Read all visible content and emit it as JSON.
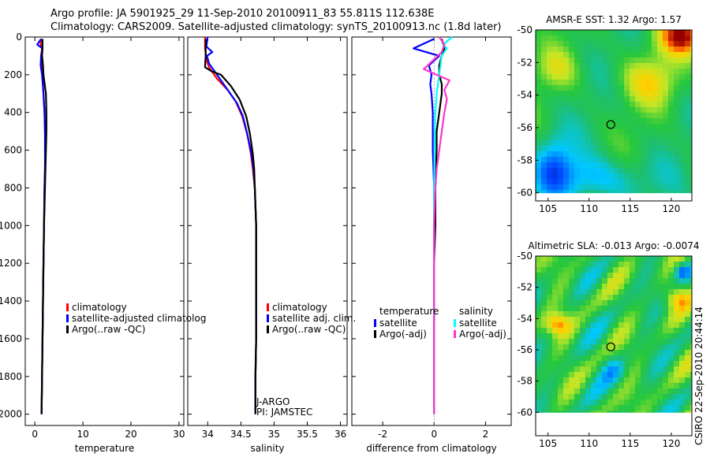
{
  "header": {
    "line1": "Argo profile: JA 5901925_29 11-Sep-2010 20100911_83 55.811S 112.638E",
    "line2": "Climatology: CARS2009. Satellite-adjusted climatology: synTS_20100913.nc (1.8d later)"
  },
  "side_stamp": "CSIRO 22-Sep-2010 20:44:14",
  "colors": {
    "climatology": "#ff0000",
    "satellite": "#0000ff",
    "argo": "#000000",
    "argo_salinity_diff": "#ff33cc",
    "satellite_salinity_diff": "#00ffff"
  },
  "chart_data": [
    {
      "type": "line",
      "xlabel": "temperature",
      "ylabel": "",
      "xlim": [
        -2,
        31
      ],
      "ylim": [
        2060,
        0
      ],
      "x_ticks": [
        0,
        10,
        20,
        30
      ],
      "y_ticks": [
        0,
        200,
        400,
        600,
        800,
        1000,
        1200,
        1400,
        1600,
        1800,
        2000
      ],
      "legend": {
        "placement": "lower-right",
        "entries": [
          "climatology",
          "satellite-adjusted climatolog",
          "Argo(..raw -QC)"
        ]
      },
      "series": [
        {
          "name": "climatology",
          "color": "#ff0000",
          "points": [
            [
              1.3,
              10
            ],
            [
              1.2,
              40
            ],
            [
              1.5,
              60
            ],
            [
              1.3,
              100
            ],
            [
              1.4,
              150
            ],
            [
              1.6,
              200
            ],
            [
              1.8,
              300
            ],
            [
              2.0,
              400
            ],
            [
              2.1,
              500
            ],
            [
              2.2,
              600
            ],
            [
              2.1,
              700
            ],
            [
              2.0,
              800
            ],
            [
              1.9,
              1000
            ],
            [
              1.8,
              1200
            ],
            [
              1.7,
              1400
            ],
            [
              1.6,
              1600
            ],
            [
              1.5,
              1800
            ],
            [
              1.4,
              2000
            ]
          ]
        },
        {
          "name": "satellite-adjusted climatolog",
          "color": "#0000ff",
          "points": [
            [
              1.3,
              10
            ],
            [
              0.5,
              40
            ],
            [
              1.6,
              60
            ],
            [
              1.3,
              100
            ],
            [
              1.2,
              150
            ],
            [
              1.5,
              200
            ],
            [
              1.8,
              300
            ],
            [
              2.0,
              400
            ],
            [
              2.1,
              500
            ],
            [
              2.1,
              600
            ],
            [
              2.1,
              700
            ],
            [
              2.0,
              800
            ],
            [
              1.9,
              1000
            ],
            [
              1.8,
              1200
            ],
            [
              1.7,
              1400
            ],
            [
              1.6,
              1600
            ],
            [
              1.5,
              1800
            ],
            [
              1.4,
              2000
            ]
          ]
        },
        {
          "name": "Argo(..raw -QC)",
          "color": "#000000",
          "points": [
            [
              1.6,
              10
            ],
            [
              1.6,
              60
            ],
            [
              1.5,
              100
            ],
            [
              1.7,
              150
            ],
            [
              1.8,
              200
            ],
            [
              2.3,
              300
            ],
            [
              2.4,
              400
            ],
            [
              2.4,
              500
            ],
            [
              2.3,
              600
            ],
            [
              2.2,
              700
            ],
            [
              2.1,
              800
            ],
            [
              1.9,
              1000
            ],
            [
              1.8,
              1200
            ],
            [
              1.7,
              1400
            ],
            [
              1.6,
              1600
            ],
            [
              1.5,
              1800
            ],
            [
              1.4,
              2000
            ]
          ]
        }
      ]
    },
    {
      "type": "line",
      "xlabel": "salinity",
      "ylabel": "",
      "xlim": [
        33.7,
        36.1
      ],
      "ylim": [
        2060,
        0
      ],
      "x_ticks": [
        34,
        34.5,
        35,
        35.5,
        36
      ],
      "legend": {
        "placement": "lower-right",
        "entries": [
          "climatology",
          "satellite adj. clim.",
          "Argo(..raw -QC)"
        ]
      },
      "annotations": [
        "J-ARGO",
        "PI: JAMSTEC"
      ],
      "series": [
        {
          "name": "climatology",
          "color": "#ff0000",
          "points": [
            [
              33.96,
              0
            ],
            [
              33.96,
              60
            ],
            [
              33.98,
              120
            ],
            [
              34.02,
              160
            ],
            [
              34.14,
              220
            ],
            [
              34.3,
              280
            ],
            [
              34.42,
              340
            ],
            [
              34.52,
              420
            ],
            [
              34.6,
              520
            ],
            [
              34.65,
              620
            ],
            [
              34.68,
              700
            ],
            [
              34.71,
              800
            ],
            [
              34.73,
              1000
            ],
            [
              34.73,
              1200
            ],
            [
              34.73,
              1400
            ],
            [
              34.73,
              1600
            ],
            [
              34.72,
              1800
            ],
            [
              34.72,
              2000
            ]
          ]
        },
        {
          "name": "satellite adj. clim.",
          "color": "#0000ff",
          "points": [
            [
              34.0,
              0
            ],
            [
              33.98,
              50
            ],
            [
              34.07,
              80
            ],
            [
              33.99,
              100
            ],
            [
              34.02,
              140
            ],
            [
              34.1,
              180
            ],
            [
              34.2,
              230
            ],
            [
              34.32,
              290
            ],
            [
              34.44,
              350
            ],
            [
              34.53,
              420
            ],
            [
              34.6,
              520
            ],
            [
              34.66,
              620
            ],
            [
              34.69,
              700
            ],
            [
              34.71,
              800
            ],
            [
              34.73,
              1000
            ],
            [
              34.73,
              1200
            ],
            [
              34.73,
              1400
            ],
            [
              34.73,
              1600
            ],
            [
              34.72,
              1800
            ],
            [
              34.72,
              2000
            ]
          ]
        },
        {
          "name": "Argo(..raw -QC)",
          "color": "#000000",
          "points": [
            [
              33.97,
              10
            ],
            [
              33.97,
              100
            ],
            [
              33.96,
              160
            ],
            [
              34.05,
              180
            ],
            [
              34.2,
              200
            ],
            [
              34.35,
              260
            ],
            [
              34.48,
              330
            ],
            [
              34.58,
              420
            ],
            [
              34.64,
              520
            ],
            [
              34.68,
              620
            ],
            [
              34.7,
              700
            ],
            [
              34.71,
              800
            ],
            [
              34.73,
              1000
            ],
            [
              34.73,
              1200
            ],
            [
              34.73,
              1400
            ],
            [
              34.73,
              1600
            ],
            [
              34.72,
              1800
            ],
            [
              34.72,
              2000
            ]
          ]
        }
      ]
    },
    {
      "type": "line",
      "xlabel": "difference from climatology",
      "ylabel": "",
      "xlim": [
        -3.2,
        3.0
      ],
      "ylim": [
        2060,
        0
      ],
      "x_ticks": [
        -2,
        0,
        2
      ],
      "legend": {
        "placement": "lower-center",
        "groups": [
          {
            "title": "temperature",
            "entries": [
              "satellite",
              "Argo(-adj)"
            ]
          },
          {
            "title": "salinity",
            "entries": [
              "satellite",
              "Argo(-adj)"
            ]
          }
        ]
      },
      "series": [
        {
          "name": "temperature satellite",
          "color": "#0000ff",
          "points": [
            [
              0.0,
              10
            ],
            [
              -0.8,
              60
            ],
            [
              0.2,
              100
            ],
            [
              -0.2,
              150
            ],
            [
              -0.1,
              200
            ],
            [
              -0.15,
              250
            ],
            [
              -0.1,
              300
            ],
            [
              -0.05,
              400
            ],
            [
              -0.05,
              600
            ],
            [
              0.0,
              800
            ],
            [
              0.0,
              1000
            ],
            [
              0.0,
              1200
            ],
            [
              0.0,
              1400
            ],
            [
              0.0,
              1600
            ],
            [
              0.0,
              1800
            ],
            [
              0.0,
              2000
            ]
          ]
        },
        {
          "name": "temperature Argo(-adj)",
          "color": "#000000",
          "points": [
            [
              0.3,
              10
            ],
            [
              0.4,
              60
            ],
            [
              0.3,
              100
            ],
            [
              0.2,
              150
            ],
            [
              0.2,
              200
            ],
            [
              0.3,
              250
            ],
            [
              0.3,
              300
            ],
            [
              0.2,
              400
            ],
            [
              0.1,
              500
            ],
            [
              0.1,
              600
            ],
            [
              0.05,
              800
            ],
            [
              0.05,
              1000
            ],
            [
              0.0,
              1200
            ],
            [
              0.0,
              1400
            ],
            [
              0.0,
              1600
            ],
            [
              0.0,
              1800
            ],
            [
              0.0,
              2000
            ]
          ]
        },
        {
          "name": "salinity satellite",
          "color": "#00ffff",
          "points": [
            [
              0.7,
              0
            ],
            [
              0.35,
              40
            ],
            [
              0.5,
              60
            ],
            [
              0.3,
              100
            ],
            [
              0.25,
              150
            ],
            [
              0.2,
              200
            ],
            [
              0.1,
              300
            ],
            [
              0.05,
              400
            ],
            [
              0.02,
              600
            ],
            [
              0.0,
              800
            ],
            [
              0.0,
              1000
            ],
            [
              0.0,
              1200
            ],
            [
              0.0,
              1400
            ],
            [
              0.0,
              1600
            ],
            [
              0.0,
              1800
            ],
            [
              0.0,
              2000
            ]
          ]
        },
        {
          "name": "salinity Argo(-adj)",
          "color": "#ff33cc",
          "points": [
            [
              0.2,
              0
            ],
            [
              0.4,
              40
            ],
            [
              0.3,
              80
            ],
            [
              -0.4,
              170
            ],
            [
              0.6,
              230
            ],
            [
              0.4,
              280
            ],
            [
              0.5,
              330
            ],
            [
              0.4,
              400
            ],
            [
              0.3,
              500
            ],
            [
              0.2,
              600
            ],
            [
              0.1,
              700
            ],
            [
              0.05,
              800
            ],
            [
              0.0,
              1000
            ],
            [
              0.0,
              1200
            ],
            [
              0.0,
              1400
            ],
            [
              0.0,
              1600
            ],
            [
              0.0,
              1800
            ],
            [
              0.0,
              2000
            ]
          ]
        }
      ]
    },
    {
      "type": "heatmap",
      "title": "AMSR-E SST: 1.32  Argo: 1.57",
      "xlim": [
        103.5,
        122.5
      ],
      "ylim": [
        -60.5,
        -50
      ],
      "x_ticks": [
        105,
        110,
        115,
        120
      ],
      "y_ticks": [
        -50,
        -52,
        -54,
        -56,
        -58,
        -60
      ],
      "profile_location": [
        112.64,
        -55.81
      ]
    },
    {
      "type": "heatmap",
      "title": "Altimetric SLA: -0.013  Argo: -0.0074",
      "xlim": [
        103.5,
        122.5
      ],
      "ylim": [
        -61.5,
        -50
      ],
      "x_ticks": [
        105,
        110,
        115,
        120
      ],
      "y_ticks": [
        -50,
        -52,
        -54,
        -56,
        -58,
        -60
      ],
      "profile_location": [
        112.64,
        -55.81
      ]
    }
  ]
}
